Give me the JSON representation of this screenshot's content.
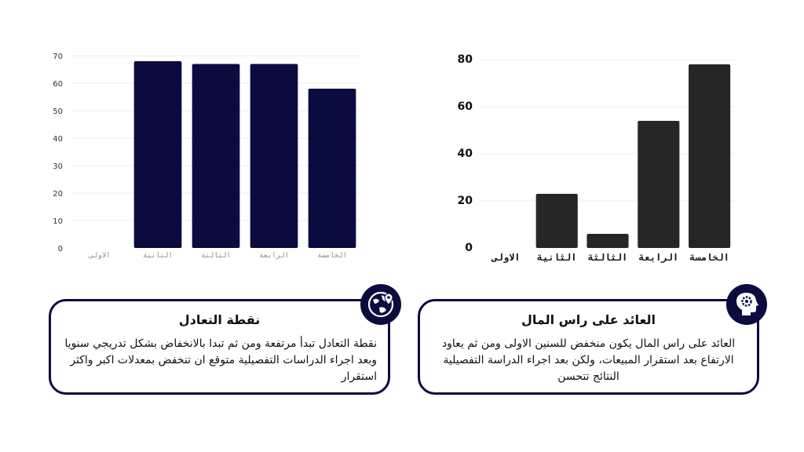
{
  "chart_data": [
    {
      "type": "bar",
      "categories": [
        "الاولى",
        "الثانية",
        "الثالثة",
        "الرابعة",
        "الخامسة"
      ],
      "values": [
        0,
        68,
        67,
        67,
        58
      ],
      "ylim": [
        0,
        70
      ],
      "yticks": [
        0,
        10,
        20,
        30,
        40,
        50,
        60,
        70
      ],
      "grid": true,
      "bar_color": "#0b0b3f"
    },
    {
      "type": "bar",
      "categories": [
        "الاولى",
        "الثانية",
        "الثالثة",
        "الرابعة",
        "الخامسة"
      ],
      "values": [
        0,
        23,
        6,
        54,
        78
      ],
      "ylim": [
        0,
        80
      ],
      "yticks": [
        0,
        20,
        40,
        60,
        80
      ],
      "grid": true,
      "bar_color": "#262626"
    }
  ],
  "cards": {
    "left": {
      "title": "نقطة التعادل",
      "body": "نقطة التعادل تبدأ مرتفعة ومن ثم تبدا بالانخفاض بشكل تدريجي سنويا وبعد اجراء الدراسات التفصيلية متوقع ان تنخفض بمعدلات اكبر واكثر استقرار",
      "icon": "globe-location-icon"
    },
    "right": {
      "title": "العائد على راس المال",
      "body": "العائد على راس المال يكون منخفض للسنين الاولى ومن ثم يعاود الارتفاع بعد استقرار المبيعات، ولكن بعد اجراء الدراسة التفصيلية النتائج تتحسن",
      "icon": "head-gear-icon"
    }
  },
  "colors": {
    "accent": "#0b0b3f",
    "dark_bar": "#262626"
  }
}
